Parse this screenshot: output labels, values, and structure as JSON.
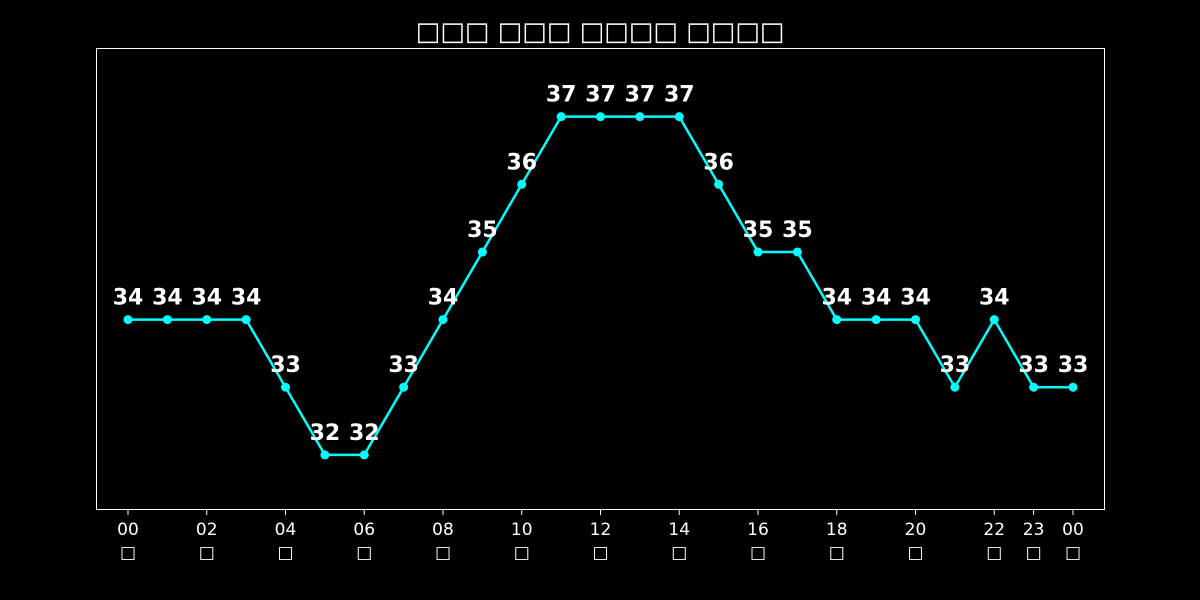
{
  "chart_data": {
    "type": "line",
    "title": "□□□ □□□ □□□□ □□□□",
    "xlabel": "",
    "ylabel": "",
    "x": [
      "00",
      "01",
      "02",
      "03",
      "04",
      "05",
      "06",
      "07",
      "08",
      "09",
      "10",
      "11",
      "12",
      "13",
      "14",
      "15",
      "16",
      "17",
      "18",
      "19",
      "20",
      "21",
      "22",
      "23",
      "00"
    ],
    "x_tick_labels": [
      {
        "index": 0,
        "label": "00",
        "sub": "□"
      },
      {
        "index": 2,
        "label": "02",
        "sub": "□"
      },
      {
        "index": 4,
        "label": "04",
        "sub": "□"
      },
      {
        "index": 6,
        "label": "06",
        "sub": "□"
      },
      {
        "index": 8,
        "label": "08",
        "sub": "□"
      },
      {
        "index": 10,
        "label": "10",
        "sub": "□"
      },
      {
        "index": 12,
        "label": "12",
        "sub": "□"
      },
      {
        "index": 14,
        "label": "14",
        "sub": "□"
      },
      {
        "index": 16,
        "label": "16",
        "sub": "□"
      },
      {
        "index": 18,
        "label": "18",
        "sub": "□"
      },
      {
        "index": 20,
        "label": "20",
        "sub": "□"
      },
      {
        "index": 22,
        "label": "22",
        "sub": "□"
      },
      {
        "index": 23,
        "label": "23",
        "sub": "□"
      },
      {
        "index": 24,
        "label": "00",
        "sub": "□"
      }
    ],
    "series": [
      {
        "values": [
          34,
          34,
          34,
          34,
          33,
          32,
          32,
          33,
          34,
          35,
          36,
          37,
          37,
          37,
          37,
          36,
          35,
          35,
          34,
          34,
          34,
          33,
          34,
          33,
          33
        ],
        "color": "#00ffff"
      }
    ],
    "ylim": [
      31.2,
      38
    ],
    "y_ticks_visible": false,
    "grid": false,
    "legend": "none",
    "background": "#000000",
    "text_color": "#ffffff",
    "frame_color": "#ffffff"
  }
}
